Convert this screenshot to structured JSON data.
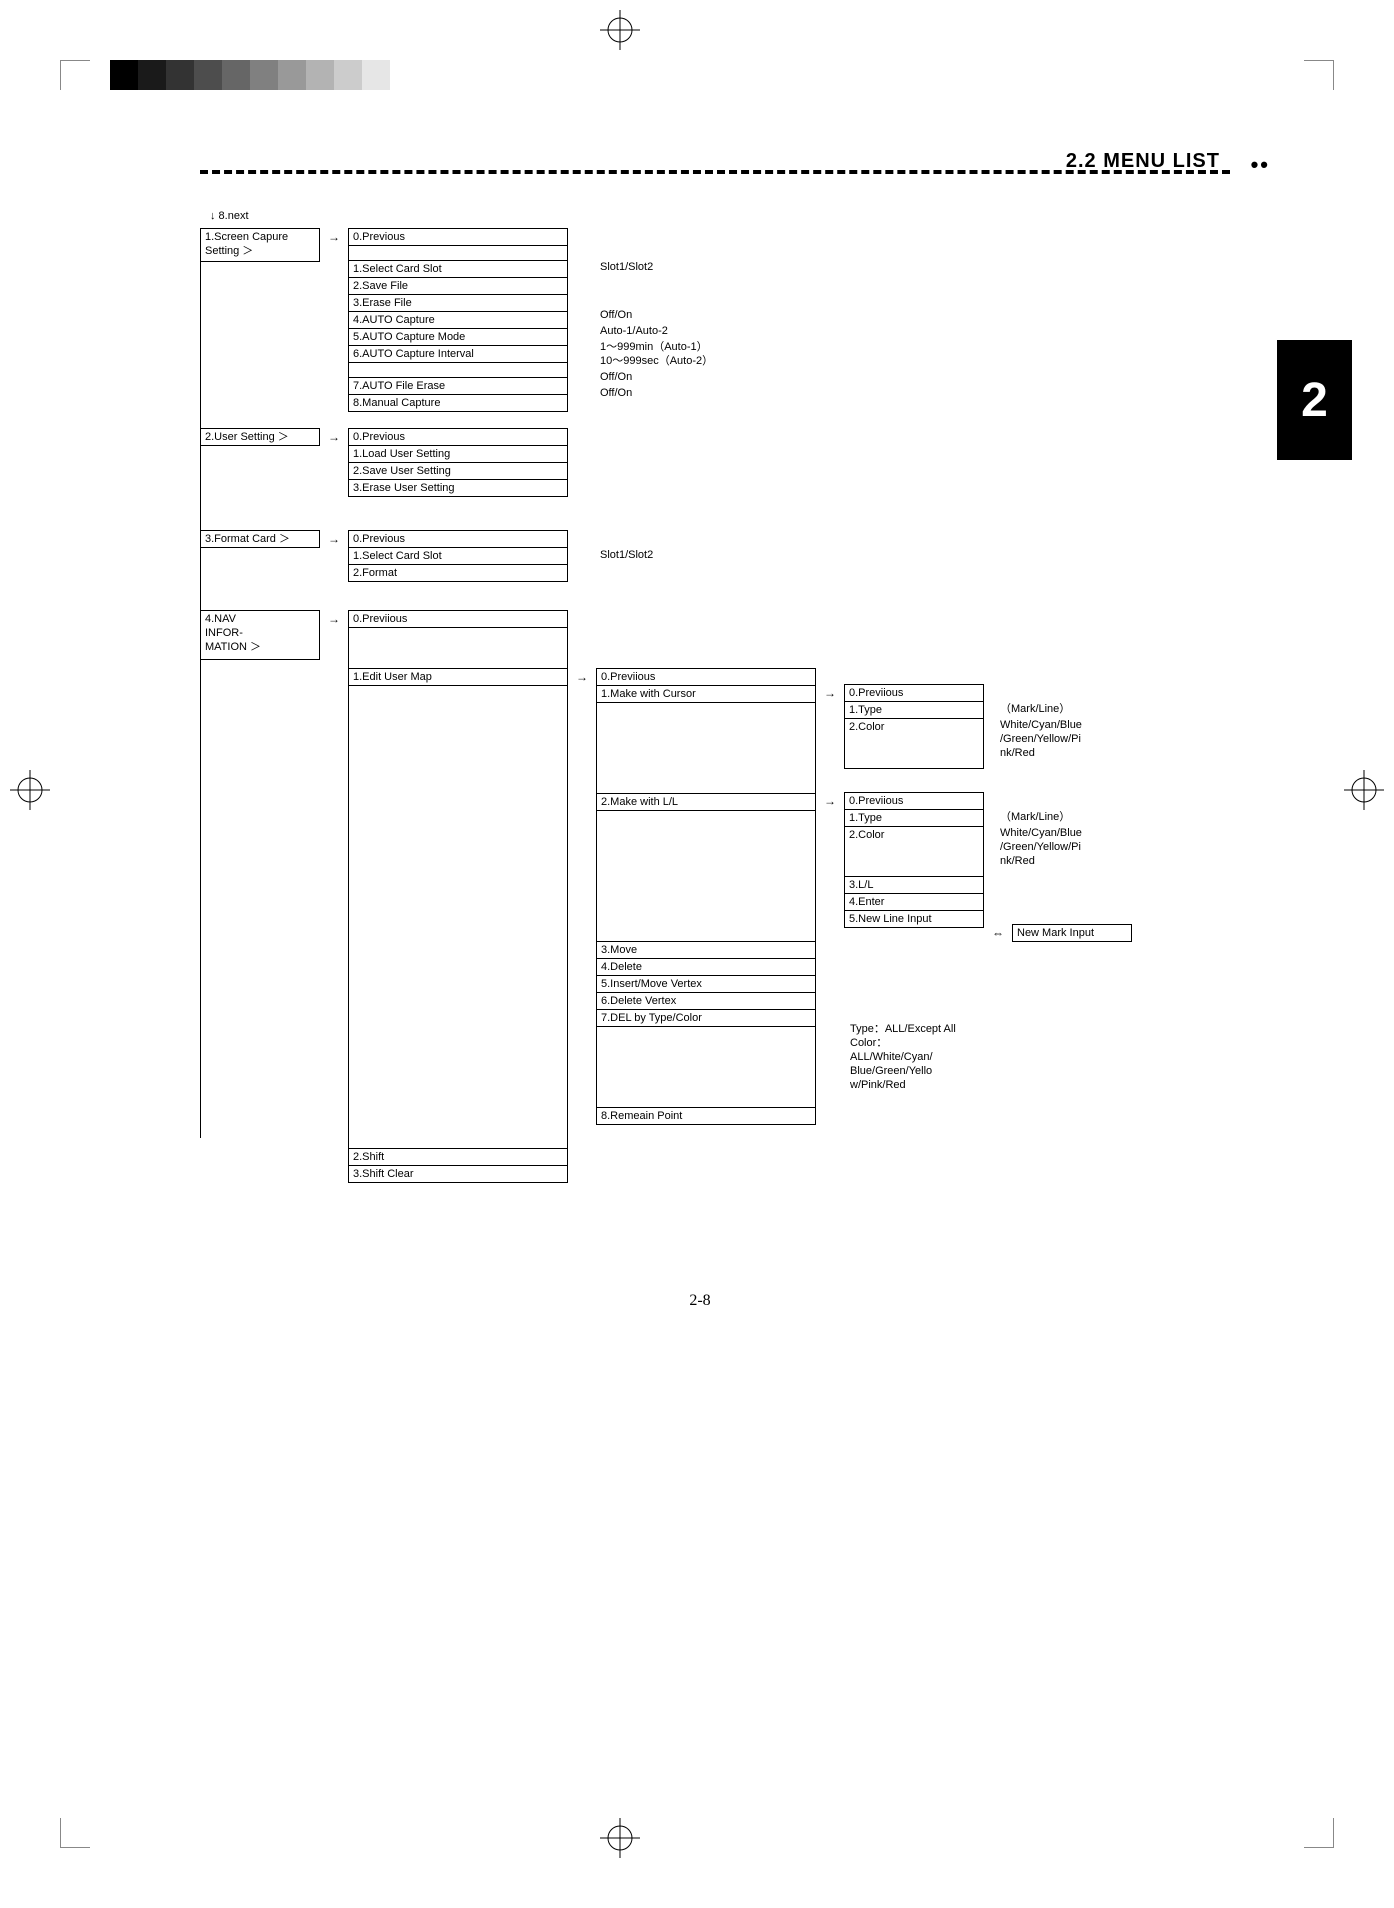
{
  "grayscale_colors": [
    "#000000",
    "#1a1a1a",
    "#333333",
    "#4d4d4d",
    "#666666",
    "#808080",
    "#999999",
    "#b3b3b3",
    "#cccccc",
    "#e6e6e6",
    "#ffffff"
  ],
  "header": {
    "title": "2.2 MENU LIST",
    "tab": "2",
    "dots": "••"
  },
  "next_label": "↓ 8.next",
  "level1": {
    "screen_capture": "1.Screen Capure\nSetting   ＞",
    "user_setting": "2.User Setting ＞",
    "format_card": "3.Format Card   ＞",
    "nav_info": "4.NAV\n INFOR-\n MATION  ＞"
  },
  "screen_capture_menu": {
    "prev": "0.Previous",
    "items": [
      {
        "l": "1.Select Card Slot",
        "v": "Slot1/Slot2"
      },
      {
        "l": "2.Save File",
        "v": ""
      },
      {
        "l": "3.Erase File",
        "v": ""
      },
      {
        "l": "4.AUTO Capture",
        "v": "Off/On"
      },
      {
        "l": "5.AUTO Capture Mode",
        "v": "Auto-1/Auto-2"
      },
      {
        "l": "6.AUTO Capture Interval",
        "v": "1～999min（Auto-1）\n10～999sec（Auto-2）"
      },
      {
        "l": "7.AUTO   File   Erase",
        "v": "Off/On"
      },
      {
        "l": "8.Manual Capture",
        "v": "Off/On"
      }
    ]
  },
  "user_setting_menu": {
    "prev": "0.Previous",
    "items": [
      "1.Load User Setting",
      "2.Save User Setting",
      "3.Erase User Setting"
    ]
  },
  "format_card_menu": {
    "prev": "0.Previous",
    "items": [
      {
        "l": "1.Select Card Slot",
        "v": "Slot1/Slot2"
      },
      {
        "l": "2.Format",
        "v": ""
      }
    ]
  },
  "nav_info_menu": {
    "prev": "0.Previious",
    "edit_user_map": "1.Edit User Map",
    "shift": "2.Shift",
    "shift_clear": "3.Shift Clear"
  },
  "edit_user_map_menu": {
    "prev": "0.Previious",
    "make_cursor": "1.Make with Cursor",
    "make_ll": "2.Make with L/L",
    "move": "3.Move",
    "delete": "4.Delete",
    "insert_vertex": "5.Insert/Move Vertex",
    "delete_vertex": "6.Delete Vertex",
    "del_by_type": "7.DEL by Type/Color",
    "del_by_type_value": "Type：ALL/Except All\nColor：\nALL/White/Cyan/\nBlue/Green/Yello\nw/Pink/Red",
    "remain": "8.Remeain Point"
  },
  "make_cursor_menu": {
    "prev": "0.Previious",
    "type": {
      "l": "1.Type",
      "v": "（Mark/Line）"
    },
    "color": {
      "l": "2.Color",
      "v": "White/Cyan/Blue\n/Green/Yellow/Pi\nnk/Red"
    }
  },
  "make_ll_menu": {
    "prev": "0.Previious",
    "type": {
      "l": "1.Type",
      "v": "（Mark/Line）"
    },
    "color": {
      "l": "2.Color",
      "v": "White/Cyan/Blue\n/Green/Yellow/Pi\nnk/Red"
    },
    "ll": "3.L/L",
    "enter": "4.Enter",
    "new_line": "5.New Line Input",
    "new_mark": "New Mark Input"
  },
  "arrows": {
    "right": "→",
    "swap": "⇔"
  },
  "page_number": "2-8"
}
